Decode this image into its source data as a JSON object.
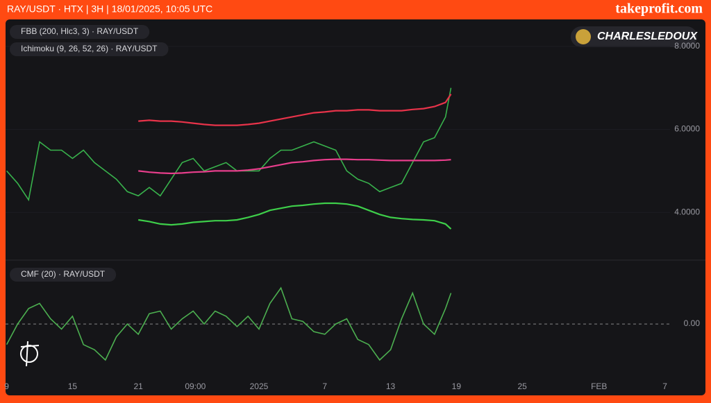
{
  "header": {
    "title": "RAY/USDT · HTX | 3H | 18/01/2025, 10:05 UTC",
    "brand": "takeprofit.com"
  },
  "watermark": "CHARLESLEDOUX",
  "chart_data": [
    {
      "type": "line",
      "indicators": [
        "FBB (200, Hlc3, 3) · RAY/USDT",
        "Ichimoku (9, 26, 52, 26) · RAY/USDT"
      ],
      "x": [
        0,
        1,
        2,
        3,
        4,
        5,
        6,
        7,
        8,
        9,
        10,
        11,
        12,
        13,
        14,
        15,
        16,
        17,
        18,
        19,
        20,
        21,
        22,
        23,
        24,
        25,
        26,
        27,
        28,
        29,
        30,
        31,
        32,
        33,
        34,
        35,
        36,
        37,
        38,
        39,
        40,
        40.5
      ],
      "xlim": [
        -0.1,
        63.7
      ],
      "ylim": [
        2.9,
        8.65
      ],
      "yticks": [
        {
          "value": 4,
          "label": "4.0000"
        },
        {
          "value": 6,
          "label": "6.0000"
        },
        {
          "value": 8,
          "label": "8.0000"
        }
      ],
      "series": [
        {
          "name": "RAY/USDT",
          "color": "#38b24c",
          "values": [
            5.0,
            4.7,
            4.3,
            5.7,
            5.5,
            5.5,
            5.3,
            5.5,
            5.2,
            5.0,
            4.8,
            4.5,
            4.4,
            4.6,
            4.4,
            4.8,
            5.2,
            5.3,
            5.0,
            5.1,
            5.2,
            5.0,
            5.0,
            5.0,
            5.3,
            5.5,
            5.5,
            5.6,
            5.7,
            5.6,
            5.5,
            5.0,
            4.8,
            4.7,
            4.5,
            4.6,
            4.7,
            5.2,
            5.7,
            5.8,
            6.3,
            7.0
          ]
        },
        {
          "name": "FBB upper",
          "color": "#e8334a",
          "values": [
            null,
            null,
            null,
            null,
            null,
            null,
            null,
            null,
            null,
            null,
            null,
            null,
            6.2,
            6.22,
            6.2,
            6.2,
            6.18,
            6.15,
            6.12,
            6.1,
            6.1,
            6.1,
            6.12,
            6.15,
            6.2,
            6.25,
            6.3,
            6.35,
            6.4,
            6.42,
            6.45,
            6.45,
            6.47,
            6.47,
            6.45,
            6.45,
            6.45,
            6.48,
            6.5,
            6.55,
            6.65,
            6.85
          ]
        },
        {
          "name": "FBB basis",
          "color": "#e83e8c",
          "values": [
            null,
            null,
            null,
            null,
            null,
            null,
            null,
            null,
            null,
            null,
            null,
            null,
            5.0,
            4.97,
            4.95,
            4.94,
            4.95,
            4.97,
            4.98,
            5.0,
            5.0,
            5.0,
            5.02,
            5.05,
            5.1,
            5.15,
            5.2,
            5.22,
            5.25,
            5.27,
            5.28,
            5.28,
            5.27,
            5.27,
            5.26,
            5.25,
            5.25,
            5.25,
            5.25,
            5.25,
            5.26,
            5.27
          ]
        },
        {
          "name": "FBB lower",
          "color": "#3ecf4a",
          "values": [
            null,
            null,
            null,
            null,
            null,
            null,
            null,
            null,
            null,
            null,
            null,
            null,
            3.82,
            3.78,
            3.72,
            3.7,
            3.72,
            3.76,
            3.78,
            3.8,
            3.8,
            3.82,
            3.88,
            3.95,
            4.05,
            4.1,
            4.15,
            4.17,
            4.2,
            4.22,
            4.22,
            4.2,
            4.15,
            4.05,
            3.95,
            3.88,
            3.85,
            3.83,
            3.82,
            3.8,
            3.72,
            3.6
          ]
        }
      ]
    },
    {
      "type": "line",
      "indicators": [
        "CMF (20) · RAY/USDT"
      ],
      "x": [
        0,
        1,
        2,
        3,
        4,
        5,
        6,
        7,
        8,
        9,
        10,
        11,
        12,
        13,
        14,
        15,
        16,
        17,
        18,
        19,
        20,
        21,
        22,
        23,
        24,
        25,
        26,
        27,
        28,
        29,
        30,
        31,
        32,
        33,
        34,
        35,
        36,
        37,
        38,
        39,
        40,
        40.5
      ],
      "xlim": [
        -0.1,
        63.7
      ],
      "xticks": [
        {
          "value": 0,
          "label": "9"
        },
        {
          "value": 6,
          "label": "15"
        },
        {
          "value": 12,
          "label": "21"
        },
        {
          "value": 17.2,
          "label": "09:00"
        },
        {
          "value": 23,
          "label": "2025"
        },
        {
          "value": 29,
          "label": "7"
        },
        {
          "value": 35,
          "label": "13"
        },
        {
          "value": 41,
          "label": "19"
        },
        {
          "value": 47,
          "label": "25"
        },
        {
          "value": 54,
          "label": "FEB"
        },
        {
          "value": 60,
          "label": "7"
        }
      ],
      "ylim": [
        -0.21,
        0.24
      ],
      "yticks": [
        {
          "value": 0,
          "label": "0.00"
        }
      ],
      "series": [
        {
          "name": "CMF",
          "color": "#4caf50",
          "values": [
            -0.08,
            0.0,
            0.06,
            0.08,
            0.02,
            -0.02,
            0.03,
            -0.08,
            -0.1,
            -0.14,
            -0.05,
            0.0,
            -0.04,
            0.04,
            0.05,
            -0.02,
            0.02,
            0.05,
            0.0,
            0.05,
            0.03,
            -0.01,
            0.03,
            -0.02,
            0.08,
            0.14,
            0.02,
            0.01,
            -0.03,
            -0.04,
            0.0,
            0.02,
            -0.06,
            -0.08,
            -0.14,
            -0.1,
            0.02,
            0.12,
            0.0,
            -0.04,
            0.06,
            0.12
          ]
        }
      ]
    }
  ]
}
